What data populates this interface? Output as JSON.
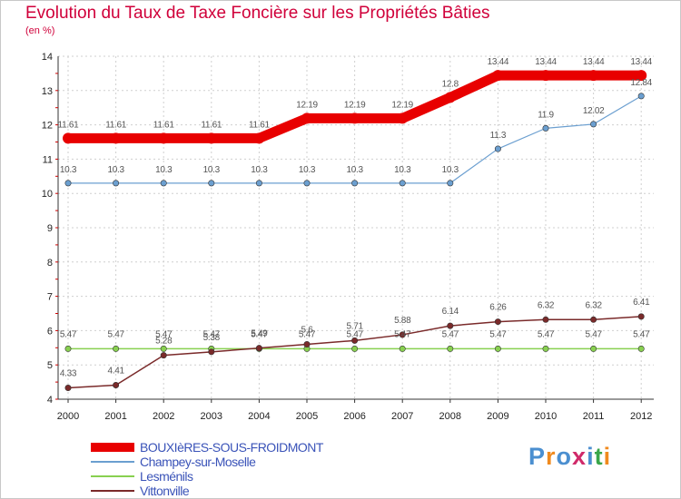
{
  "title": "Evolution du Taux de Taxe Foncière sur les Propriétés Bâties",
  "unit_label": "(en %)",
  "logo": {
    "text": "Proxiti",
    "colors": [
      "#4b8fd0",
      "#f08a1e",
      "#4b8fd0",
      "#d02a6a",
      "#4b8fd0",
      "#3aa64a",
      "#f08a1e"
    ]
  },
  "chart_data": {
    "type": "line",
    "title": "Evolution du Taux de Taxe Foncière sur les Propriétés Bâties",
    "ylabel": "(en %)",
    "xlabel": "",
    "x": [
      "2000",
      "2001",
      "2002",
      "2003",
      "2004",
      "2005",
      "2006",
      "2007",
      "2008",
      "2009",
      "2010",
      "2011",
      "2012"
    ],
    "ylim": [
      4,
      14
    ],
    "yticks": [
      "4",
      "5",
      "6",
      "7",
      "8",
      "9",
      "10",
      "11",
      "12",
      "13",
      "14"
    ],
    "series": [
      {
        "name": "BOUXIèRES-SOUS-FROIDMONT",
        "color": "#e80000",
        "values": [
          11.61,
          11.61,
          11.61,
          11.61,
          11.61,
          12.19,
          12.19,
          12.19,
          12.8,
          13.44,
          13.44,
          13.44,
          13.44
        ],
        "labels": [
          "11.61",
          "11.61",
          "11.61",
          "11.61",
          "11.61",
          "12.19",
          "12.19",
          "12.19",
          "12.8",
          "13.44",
          "13.44",
          "13.44",
          "13.44"
        ]
      },
      {
        "name": "Champey-sur-Moselle",
        "color": "#6b9fd0",
        "values": [
          10.3,
          10.3,
          10.3,
          10.3,
          10.3,
          10.3,
          10.3,
          10.3,
          10.3,
          11.3,
          11.9,
          12.02,
          12.84
        ],
        "labels": [
          "10.3",
          "10.3",
          "10.3",
          "10.3",
          "10.3",
          "10.3",
          "10.3",
          "10.3",
          "10.3",
          "11.3",
          "11.9",
          "12.02",
          "12.84"
        ]
      },
      {
        "name": "Lesménils",
        "color": "#88d050",
        "values": [
          5.47,
          5.47,
          5.47,
          5.47,
          5.47,
          5.47,
          5.47,
          5.47,
          5.47,
          5.47,
          5.47,
          5.47,
          5.47
        ],
        "labels": [
          "5.47",
          "5.47",
          "5.47",
          "5.47",
          "5.47",
          "5.47",
          "5.47",
          "5.47",
          "5.47",
          "5.47",
          "5.47",
          "5.47",
          "5.47"
        ]
      },
      {
        "name": "Vittonville",
        "color": "#7a2a2a",
        "values": [
          4.33,
          4.41,
          5.28,
          5.38,
          5.49,
          5.6,
          5.71,
          5.88,
          6.14,
          6.26,
          6.32,
          6.32,
          6.41
        ],
        "labels": [
          "4.33",
          "4.41",
          "5.28",
          "5.38",
          "5.49",
          "5.6",
          "5.71",
          "5.88",
          "6.14",
          "6.26",
          "6.32",
          "6.32",
          "6.41"
        ]
      }
    ]
  }
}
